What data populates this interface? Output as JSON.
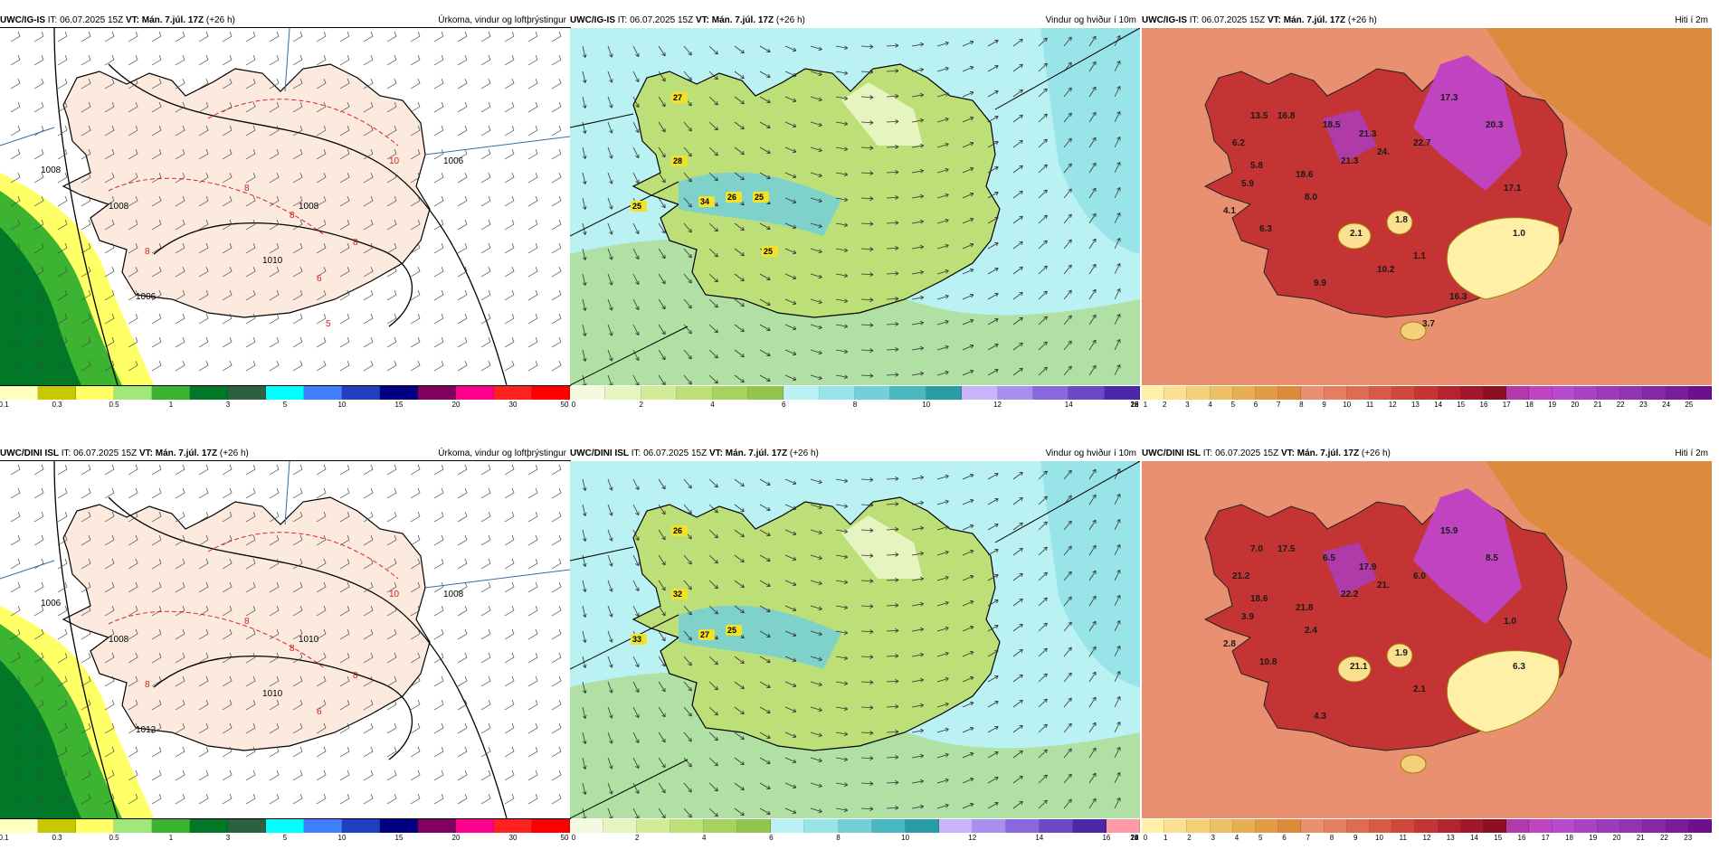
{
  "rows": [
    {
      "model": "UWC/IG-IS",
      "panels": [
        {
          "kind": "precip",
          "it_text": "IT: 06.07.2025 15Z",
          "vt_text": "VT: Mán. 7.júl. 17Z",
          "lead": "(+26 h)",
          "title": "Úrkoma, vindur og loftþrýstingur",
          "labels": [
            "1008",
            "1008",
            "1006",
            "1008",
            "1010",
            "1006",
            "10",
            "8",
            "8",
            "8",
            "8",
            "6",
            "5"
          ]
        },
        {
          "kind": "wind",
          "it_text": "IT: 06.07.2025 15Z",
          "vt_text": "VT: Mán. 7.júl. 17Z",
          "lead": "(+26 h)",
          "title": "Vindur og hviður í 10m",
          "labels": [
            "27",
            "25",
            "28",
            "34",
            "26",
            "25",
            "25"
          ]
        },
        {
          "kind": "temp",
          "it_text": "IT: 06.07.2025 15Z",
          "vt_text": "VT: Mán. 7.júl. 17Z",
          "lead": "(+26 h)",
          "title": "Hiti í 2m",
          "labels": [
            "13.5",
            "6.2",
            "16.8",
            "18.5",
            "21.3",
            "17.3",
            "5.8",
            "18.6",
            "21.3",
            "24.",
            "22.7",
            "20.3",
            "5.9",
            "8.0",
            "4.1",
            "2.1",
            "1.8",
            "17.1",
            "1.0",
            "6.3",
            "1.1",
            "9.9",
            "10.2",
            "16.3",
            "3.7"
          ]
        }
      ]
    },
    {
      "model": "UWC/DINI ISL",
      "panels": [
        {
          "kind": "precip",
          "it_text": "IT: 06.07.2025 15Z",
          "vt_text": "VT: Mán. 7.júl. 17Z",
          "lead": "(+26 h)",
          "title": "Úrkoma, vindur og loftþrýstingur",
          "labels": [
            "1006",
            "1008",
            "1008",
            "1010",
            "1010",
            "1012",
            "10",
            "8",
            "8",
            "8",
            "8",
            "6"
          ]
        },
        {
          "kind": "wind",
          "it_text": "IT: 06.07.2025 15Z",
          "vt_text": "VT: Mán. 7.júl. 17Z",
          "lead": "(+26 h)",
          "title": "Vindur og hviður í 10m",
          "labels": [
            "26",
            "33",
            "32",
            "27",
            "25"
          ]
        },
        {
          "kind": "temp",
          "it_text": "IT: 06.07.2025 15Z",
          "vt_text": "VT: Mán. 7.júl. 17Z",
          "lead": "(+26 h)",
          "title": "Hiti í 2m",
          "labels": [
            "7.0",
            "21.2",
            "17.5",
            "6.5",
            "17.9",
            "15.9",
            "18.6",
            "21.8",
            "22.2",
            "21.",
            "6.0",
            "8.5",
            "3.9",
            "2.4",
            "2.8",
            "21.1",
            "1.9",
            "1.0",
            "6.3",
            "10.8",
            "2.1",
            "4.3"
          ]
        }
      ]
    }
  ],
  "scales": {
    "precip": {
      "colors": [
        "#ffffc0",
        "#c8c800",
        "#ffff66",
        "#a0e878",
        "#3cb432",
        "#007828",
        "#2c6040",
        "#00ffff",
        "#4080ff",
        "#2040c0",
        "#000080",
        "#800060",
        "#ff0090",
        "#ff2020",
        "#ff0000"
      ],
      "ticks": [
        "0.1",
        "0.3",
        "0.5",
        "1",
        "3",
        "5",
        "10",
        "15",
        "20",
        "30",
        "50"
      ]
    },
    "wind": {
      "colors": [
        "#f4fae0",
        "#e6f4c0",
        "#d2eb96",
        "#bcdf78",
        "#a8d260",
        "#92c450",
        "#baf2f4",
        "#98e4e8",
        "#74d0d8",
        "#4ab8c0",
        "#2a9ca4",
        "#c8b4f8",
        "#a890f0",
        "#8868dc",
        "#6c48c4",
        "#4c28a8"
      ],
      "ticks_top": [
        "0",
        "2",
        "4",
        "6",
        "8",
        "10",
        "12",
        "14",
        "16",
        "18",
        "20",
        "22"
      ],
      "colors_bottom": [
        "#f4fae0",
        "#e6f4c0",
        "#d2eb96",
        "#bcdf78",
        "#a8d260",
        "#92c450",
        "#baf2f4",
        "#98e4e8",
        "#74d0d8",
        "#4ab8c0",
        "#2a9ca4",
        "#c8b4f8",
        "#a890f0",
        "#8868dc",
        "#6c48c4",
        "#4c28a8",
        "#ff9aa8"
      ],
      "ticks_bottom": [
        "0",
        "2",
        "4",
        "6",
        "8",
        "10",
        "12",
        "14",
        "16",
        "18",
        "20",
        "22",
        "24"
      ]
    },
    "temp": {
      "colors": [
        "#fff0a8",
        "#fae090",
        "#f4d07a",
        "#eec066",
        "#e8ae54",
        "#e29c46",
        "#dc8a3c",
        "#e89070",
        "#e47e60",
        "#de6c52",
        "#d85a46",
        "#d0483c",
        "#c43434",
        "#b42430",
        "#a0182a",
        "#8c1024",
        "#b03aa8",
        "#c044c0",
        "#b64ccc",
        "#a844c4",
        "#9c3cbc",
        "#9034b0",
        "#8428a4",
        "#781c98",
        "#6c108c"
      ],
      "ticks_top": [
        "1",
        "2",
        "3",
        "4",
        "5",
        "6",
        "7",
        "8",
        "9",
        "10",
        "11",
        "12",
        "13",
        "14",
        "15",
        "16",
        "17",
        "18",
        "19",
        "20",
        "21",
        "22",
        "23",
        "24",
        "25"
      ],
      "ticks_bottom": [
        "0",
        "1",
        "2",
        "3",
        "4",
        "5",
        "6",
        "7",
        "8",
        "9",
        "10",
        "11",
        "12",
        "13",
        "14",
        "15",
        "16",
        "17",
        "18",
        "19",
        "20",
        "21",
        "22",
        "23"
      ]
    }
  }
}
